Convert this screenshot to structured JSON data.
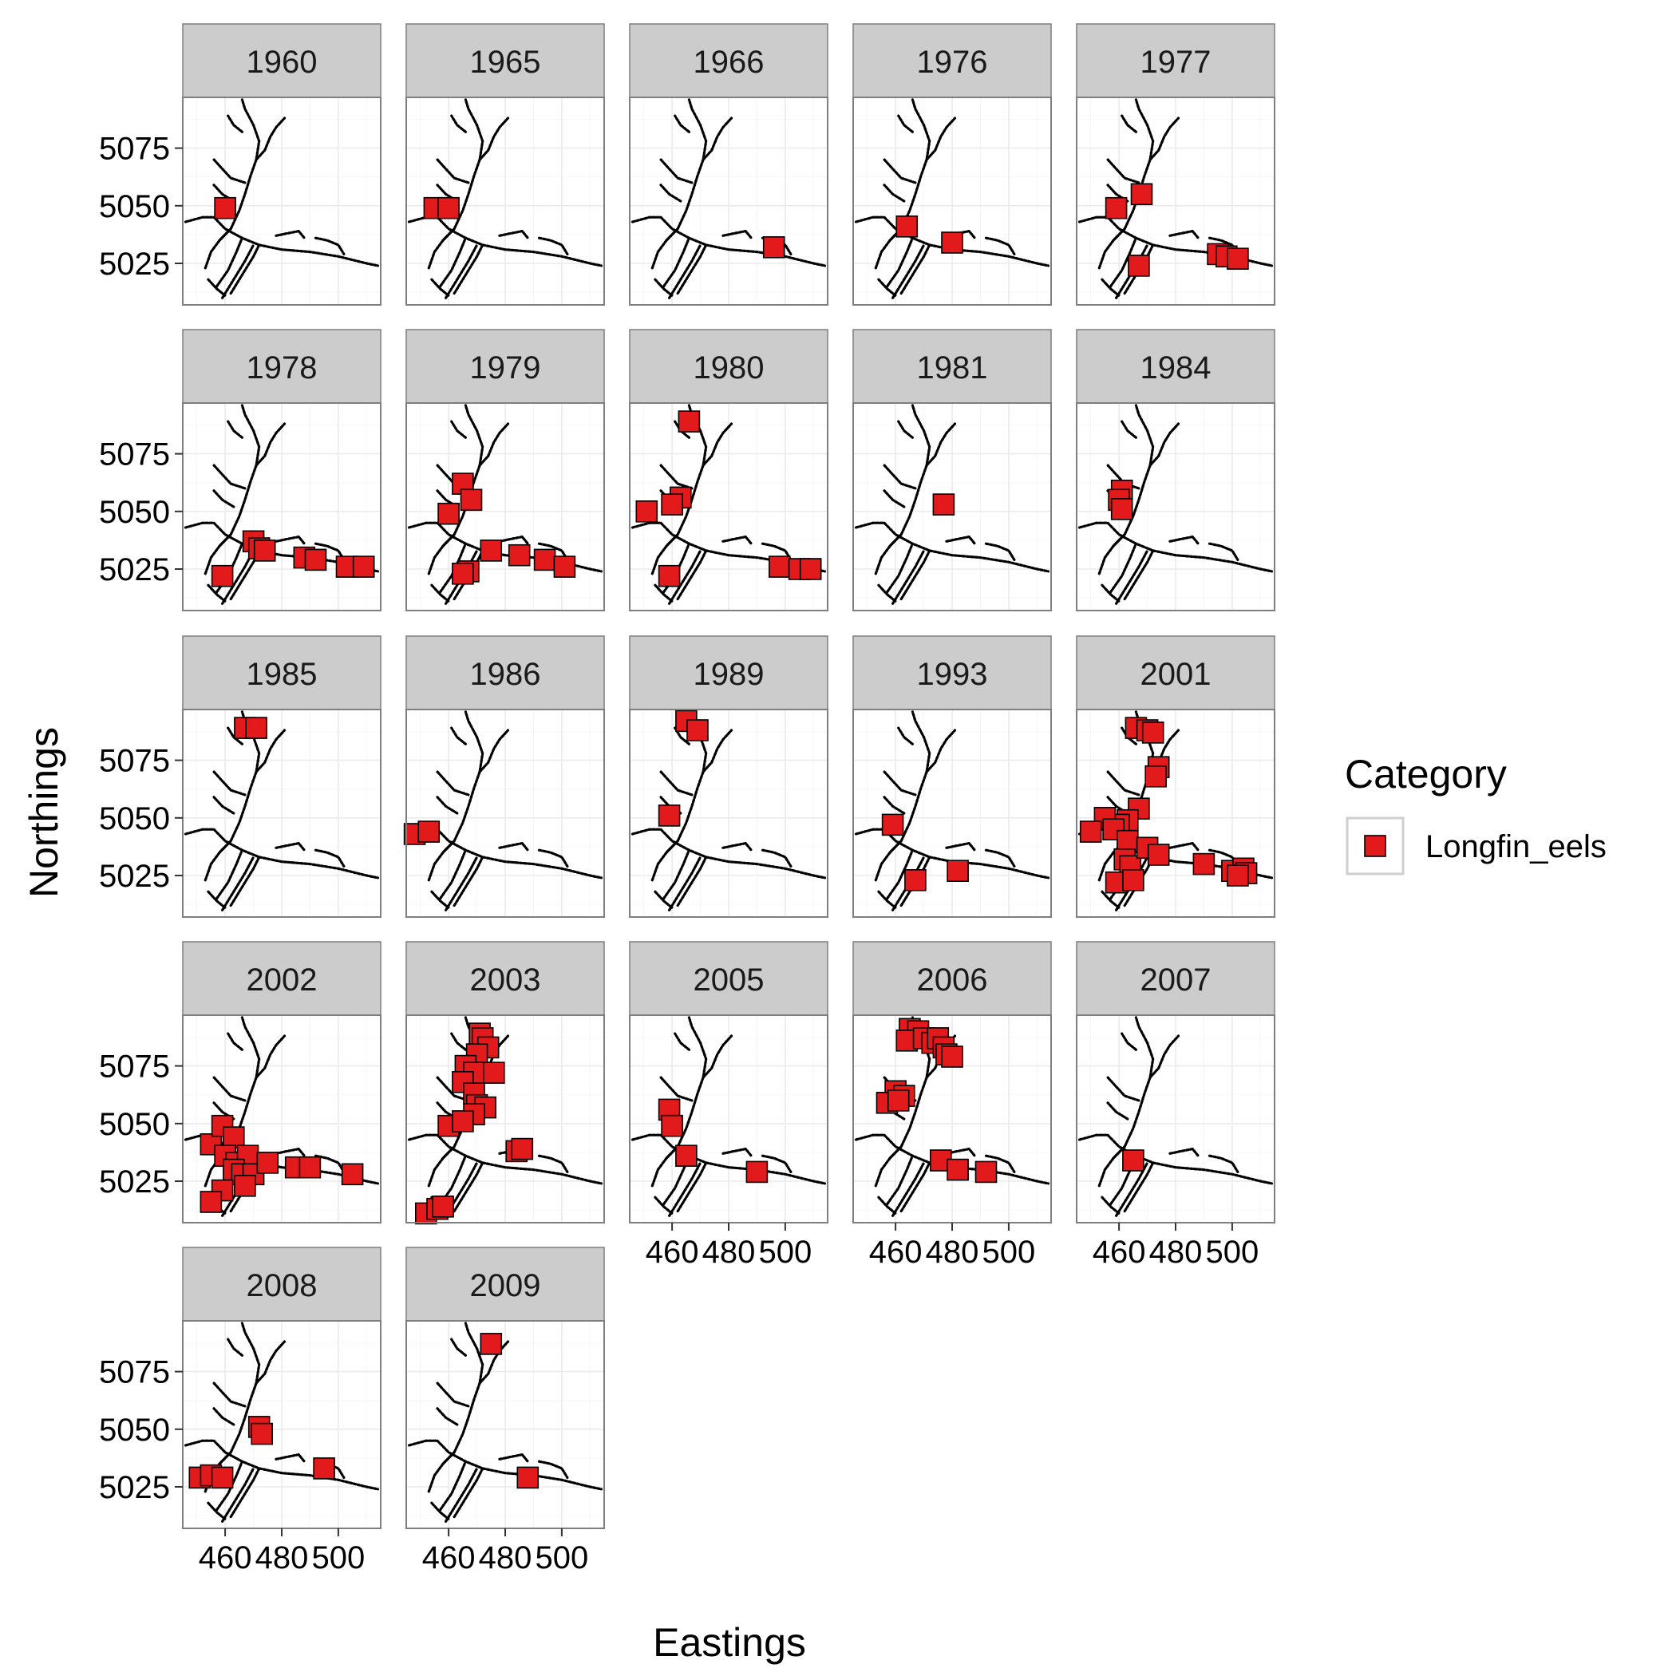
{
  "chart_data": {
    "type": "scatter",
    "layout": "faceted",
    "xlabel": "Eastings",
    "ylabel": "Northings",
    "xlim": [
      445,
      515
    ],
    "ylim": [
      5007,
      5097
    ],
    "x_ticks": [
      460,
      480,
      500
    ],
    "y_ticks": [
      5025,
      5050,
      5075
    ],
    "grid": true,
    "legend": {
      "position": "right",
      "title": "Category",
      "entries": [
        {
          "label": "Longfin_eels",
          "color": "#e31a1c"
        }
      ]
    },
    "background_layer": "river network shown as small black points in every panel",
    "series": [
      {
        "name": "Longfin_eels",
        "color": "#e31a1c",
        "marker": "square"
      }
    ],
    "panels": [
      {
        "year": "1960",
        "points": [
          [
            460,
            5049
          ]
        ]
      },
      {
        "year": "1965",
        "points": [
          [
            455,
            5049
          ],
          [
            460,
            5049
          ]
        ]
      },
      {
        "year": "1966",
        "points": [
          [
            496,
            5032
          ]
        ]
      },
      {
        "year": "1976",
        "points": [
          [
            464,
            5041
          ],
          [
            480,
            5034
          ]
        ]
      },
      {
        "year": "1977",
        "points": [
          [
            459,
            5049
          ],
          [
            468,
            5055
          ],
          [
            467,
            5024
          ],
          [
            495,
            5029
          ],
          [
            498,
            5028
          ],
          [
            502,
            5027
          ]
        ]
      },
      {
        "year": "1978",
        "points": [
          [
            459,
            5022
          ],
          [
            470,
            5037
          ],
          [
            472,
            5034
          ],
          [
            474,
            5033
          ],
          [
            488,
            5030
          ],
          [
            492,
            5029
          ],
          [
            503,
            5026
          ],
          [
            509,
            5026
          ]
        ]
      },
      {
        "year": "1979",
        "points": [
          [
            460,
            5049
          ],
          [
            465,
            5062
          ],
          [
            468,
            5055
          ],
          [
            467,
            5024
          ],
          [
            465,
            5023
          ],
          [
            475,
            5033
          ],
          [
            485,
            5031
          ],
          [
            494,
            5029
          ],
          [
            501,
            5026
          ]
        ]
      },
      {
        "year": "1980",
        "points": [
          [
            466,
            5089
          ],
          [
            463,
            5056
          ],
          [
            460,
            5053
          ],
          [
            451,
            5050
          ],
          [
            459,
            5022
          ],
          [
            498,
            5026
          ],
          [
            505,
            5025
          ],
          [
            509,
            5025
          ]
        ]
      },
      {
        "year": "1981",
        "points": [
          [
            477,
            5053
          ]
        ]
      },
      {
        "year": "1984",
        "points": [
          [
            461,
            5059
          ],
          [
            460,
            5055
          ],
          [
            461,
            5051
          ]
        ]
      },
      {
        "year": "1985",
        "points": [
          [
            467,
            5089
          ],
          [
            471,
            5089
          ]
        ]
      },
      {
        "year": "1986",
        "points": [
          [
            448,
            5043
          ],
          [
            453,
            5044
          ]
        ]
      },
      {
        "year": "1989",
        "points": [
          [
            465,
            5092
          ],
          [
            469,
            5088
          ],
          [
            459,
            5051
          ]
        ]
      },
      {
        "year": "1993",
        "points": [
          [
            459,
            5047
          ],
          [
            467,
            5023
          ],
          [
            482,
            5027
          ]
        ]
      },
      {
        "year": "2001",
        "points": [
          [
            466,
            5089
          ],
          [
            470,
            5088
          ],
          [
            472,
            5087
          ],
          [
            474,
            5072
          ],
          [
            473,
            5068
          ],
          [
            467,
            5054
          ],
          [
            463,
            5049
          ],
          [
            460,
            5047
          ],
          [
            455,
            5050
          ],
          [
            450,
            5044
          ],
          [
            458,
            5045
          ],
          [
            463,
            5040
          ],
          [
            462,
            5032
          ],
          [
            464,
            5029
          ],
          [
            470,
            5037
          ],
          [
            474,
            5034
          ],
          [
            459,
            5022
          ],
          [
            465,
            5023
          ],
          [
            490,
            5030
          ],
          [
            500,
            5027
          ],
          [
            504,
            5028
          ],
          [
            505,
            5026
          ],
          [
            502,
            5025
          ]
        ]
      },
      {
        "year": "2002",
        "points": [
          [
            455,
            5041
          ],
          [
            459,
            5049
          ],
          [
            463,
            5044
          ],
          [
            460,
            5036
          ],
          [
            464,
            5033
          ],
          [
            468,
            5036
          ],
          [
            463,
            5030
          ],
          [
            466,
            5028
          ],
          [
            470,
            5028
          ],
          [
            459,
            5021
          ],
          [
            455,
            5016
          ],
          [
            467,
            5023
          ],
          [
            475,
            5033
          ],
          [
            485,
            5031
          ],
          [
            490,
            5031
          ],
          [
            505,
            5028
          ]
        ]
      },
      {
        "year": "2003",
        "points": [
          [
            471,
            5089
          ],
          [
            472,
            5087
          ],
          [
            474,
            5083
          ],
          [
            470,
            5080
          ],
          [
            466,
            5075
          ],
          [
            469,
            5072
          ],
          [
            476,
            5072
          ],
          [
            465,
            5068
          ],
          [
            469,
            5063
          ],
          [
            470,
            5058
          ],
          [
            473,
            5057
          ],
          [
            469,
            5054
          ],
          [
            460,
            5049
          ],
          [
            465,
            5051
          ],
          [
            484,
            5038
          ],
          [
            486,
            5039
          ],
          [
            452,
            5011
          ],
          [
            456,
            5013
          ],
          [
            458,
            5014
          ]
        ]
      },
      {
        "year": "2005",
        "points": [
          [
            459,
            5056
          ],
          [
            460,
            5049
          ],
          [
            465,
            5036
          ],
          [
            490,
            5029
          ]
        ]
      },
      {
        "year": "2006",
        "points": [
          [
            465,
            5091
          ],
          [
            468,
            5090
          ],
          [
            464,
            5086
          ],
          [
            470,
            5087
          ],
          [
            473,
            5085
          ],
          [
            475,
            5087
          ],
          [
            477,
            5083
          ],
          [
            478,
            5080
          ],
          [
            480,
            5079
          ],
          [
            460,
            5064
          ],
          [
            463,
            5062
          ],
          [
            457,
            5059
          ],
          [
            461,
            5060
          ],
          [
            476,
            5034
          ],
          [
            482,
            5030
          ],
          [
            492,
            5029
          ]
        ]
      },
      {
        "year": "2007",
        "points": [
          [
            465,
            5034
          ]
        ]
      },
      {
        "year": "2008",
        "points": [
          [
            472,
            5051
          ],
          [
            473,
            5048
          ],
          [
            451,
            5029
          ],
          [
            455,
            5030
          ],
          [
            459,
            5029
          ],
          [
            495,
            5033
          ]
        ]
      },
      {
        "year": "2009",
        "points": [
          [
            475,
            5087
          ],
          [
            488,
            5029
          ]
        ]
      }
    ]
  }
}
